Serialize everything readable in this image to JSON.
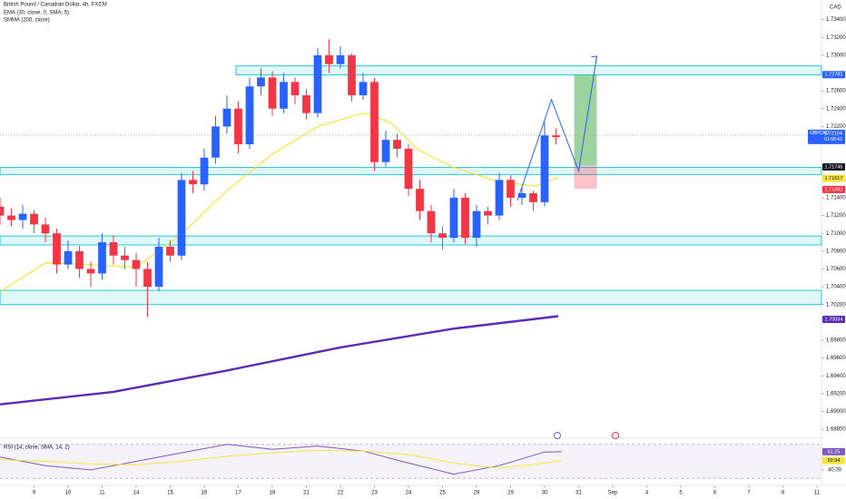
{
  "chart_data": {
    "type": "candlestick",
    "title": "British Pound / Canadian Dollar, 4h, FXCM",
    "indicators": [
      "EMA (30, close, 0, SMA, 5)",
      "SMMA (200, close)"
    ],
    "currency": "CAD",
    "up_color": "#2962ff",
    "down_color": "#f23645",
    "xlim": [
      0,
      72.4
    ],
    "ylim": [
      1.6871,
      1.7362
    ],
    "yticks": [
      {
        "value": 1.734,
        "label": "1.73400"
      },
      {
        "value": 1.732,
        "label": "1.73200"
      },
      {
        "value": 1.73,
        "label": "1.73000"
      },
      {
        "value": 1.726,
        "label": "1.72600"
      },
      {
        "value": 1.724,
        "label": "1.72400"
      },
      {
        "value": 1.722,
        "label": "1.72200"
      },
      {
        "value": 1.714,
        "label": "1.71400"
      },
      {
        "value": 1.712,
        "label": "1.71200"
      },
      {
        "value": 1.71,
        "label": "1.71000"
      },
      {
        "value": 1.708,
        "label": "1.70800"
      },
      {
        "value": 1.706,
        "label": "1.70600"
      },
      {
        "value": 1.704,
        "label": "1.70400"
      },
      {
        "value": 1.702,
        "label": "1.70200"
      },
      {
        "value": 1.698,
        "label": "1.69800"
      },
      {
        "value": 1.696,
        "label": "1.69600"
      },
      {
        "value": 1.694,
        "label": "1.69400"
      },
      {
        "value": 1.692,
        "label": "1.69200"
      },
      {
        "value": 1.69,
        "label": "1.69000"
      },
      {
        "value": 1.688,
        "label": "1.68800"
      }
    ],
    "xticks": [
      {
        "value": 3,
        "label": "9"
      },
      {
        "value": 6,
        "label": "10"
      },
      {
        "value": 9,
        "label": "11"
      },
      {
        "value": 12,
        "label": "14"
      },
      {
        "value": 15,
        "label": "15"
      },
      {
        "value": 18,
        "label": "16"
      },
      {
        "value": 21,
        "label": "17"
      },
      {
        "value": 24,
        "label": "18"
      },
      {
        "value": 27,
        "label": "21"
      },
      {
        "value": 30,
        "label": "22"
      },
      {
        "value": 33,
        "label": "23"
      },
      {
        "value": 36,
        "label": "24"
      },
      {
        "value": 39,
        "label": "25"
      },
      {
        "value": 42,
        "label": "28"
      },
      {
        "value": 45,
        "label": "29"
      },
      {
        "value": 48,
        "label": "30"
      },
      {
        "value": 51,
        "label": "31"
      },
      {
        "value": 54,
        "label": "Sep"
      },
      {
        "value": 57,
        "label": "4"
      },
      {
        "value": 60,
        "label": "5"
      },
      {
        "value": 63,
        "label": "6"
      },
      {
        "value": 66,
        "label": "7"
      },
      {
        "value": 69,
        "label": "8"
      },
      {
        "value": 72,
        "label": "11"
      }
    ],
    "x": [
      0,
      1,
      2,
      3,
      4,
      5,
      6,
      7,
      8,
      9,
      10,
      11,
      12,
      13,
      14,
      15,
      16,
      17,
      18,
      19,
      20,
      21,
      22,
      23,
      24,
      25,
      26,
      27,
      28,
      29,
      30,
      31,
      32,
      33,
      34,
      35,
      36,
      37,
      38,
      39,
      40,
      41,
      42,
      43,
      44,
      45,
      46,
      47,
      48,
      49
    ],
    "open": [
      1.713,
      1.712,
      1.7115,
      1.7122,
      1.711,
      1.71,
      1.7065,
      1.708,
      1.706,
      1.7055,
      1.709,
      1.7075,
      1.707,
      1.706,
      1.704,
      1.7085,
      1.7075,
      1.716,
      1.7155,
      1.7185,
      1.722,
      1.724,
      1.72,
      1.7265,
      1.7275,
      1.724,
      1.727,
      1.7255,
      1.7235,
      1.73,
      1.729,
      1.73,
      1.7255,
      1.727,
      1.718,
      1.7205,
      1.7195,
      1.715,
      1.7125,
      1.71,
      1.7095,
      1.714,
      1.7095,
      1.7125,
      1.712,
      1.716,
      1.714,
      1.7145,
      1.7135,
      1.721
    ],
    "high": [
      1.714,
      1.7128,
      1.7132,
      1.7126,
      1.7118,
      1.7105,
      1.7092,
      1.7086,
      1.7068,
      1.71,
      1.7098,
      1.7085,
      1.7078,
      1.7068,
      1.7095,
      1.7092,
      1.7168,
      1.717,
      1.7195,
      1.7232,
      1.7255,
      1.7248,
      1.7275,
      1.7285,
      1.7282,
      1.728,
      1.7275,
      1.7262,
      1.7308,
      1.7318,
      1.731,
      1.7302,
      1.728,
      1.7275,
      1.7215,
      1.7212,
      1.72,
      1.716,
      1.7132,
      1.7108,
      1.715,
      1.7145,
      1.7132,
      1.713,
      1.7168,
      1.7165,
      1.7152,
      1.7148,
      1.7225,
      1.7218
    ],
    "low": [
      1.711,
      1.7108,
      1.7105,
      1.71,
      1.709,
      1.7055,
      1.706,
      1.705,
      1.704,
      1.7048,
      1.7065,
      1.706,
      1.704,
      1.7006,
      1.7035,
      1.7068,
      1.707,
      1.7145,
      1.7148,
      1.7178,
      1.7212,
      1.719,
      1.7195,
      1.7255,
      1.7232,
      1.7235,
      1.7245,
      1.7228,
      1.723,
      1.728,
      1.7285,
      1.7248,
      1.725,
      1.717,
      1.7175,
      1.7185,
      1.7142,
      1.7115,
      1.709,
      1.7082,
      1.709,
      1.7088,
      1.7085,
      1.711,
      1.7115,
      1.713,
      1.7132,
      1.7125,
      1.713,
      1.72
    ],
    "close": [
      1.712,
      1.7115,
      1.7122,
      1.711,
      1.71,
      1.7065,
      1.708,
      1.706,
      1.7055,
      1.709,
      1.7075,
      1.707,
      1.706,
      1.704,
      1.7085,
      1.7075,
      1.716,
      1.7155,
      1.7185,
      1.722,
      1.724,
      1.72,
      1.7265,
      1.7275,
      1.724,
      1.727,
      1.7255,
      1.7235,
      1.73,
      1.729,
      1.73,
      1.7255,
      1.727,
      1.718,
      1.7205,
      1.7195,
      1.715,
      1.7125,
      1.71,
      1.7095,
      1.714,
      1.7095,
      1.7125,
      1.712,
      1.716,
      1.714,
      1.7145,
      1.7135,
      1.721,
      1.7208
    ],
    "lines": [
      {
        "color": "#f7e33b",
        "x": [
          0,
          4,
          8,
          12,
          16,
          20,
          24,
          28,
          32,
          34.4,
          36.8,
          40,
          44,
          47.2,
          49.2
        ],
        "values": [
          1.7034,
          1.7067,
          1.7065,
          1.7062,
          1.7099,
          1.7148,
          1.7189,
          1.722,
          1.7235,
          1.7225,
          1.7194,
          1.7174,
          1.7158,
          1.7153,
          1.7163
        ]
      },
      {
        "color": "#5b2bb3",
        "x": [
          0,
          10,
          20,
          30,
          40,
          49.2
        ],
        "values": [
          1.6908,
          1.6922,
          1.6946,
          1.6972,
          1.6993,
          1.7007
        ]
      }
    ],
    "zones": [
      {
        "from": 20.8,
        "low": 1.7278,
        "high": 1.7288
      },
      {
        "from": 0,
        "low": 1.7166,
        "high": 1.7174
      },
      {
        "from": 0,
        "low": 1.7087,
        "high": 1.7097
      },
      {
        "from": 0,
        "low": 1.702,
        "high": 1.7036
      }
    ],
    "position": {
      "from": 50.6,
      "to": 52.6,
      "target": 1.7278,
      "entry": 1.7176,
      "stop": 1.715
    },
    "projection": {
      "x": [
        45.6,
        48.6,
        51,
        52.6
      ],
      "values": [
        1.7137,
        1.725,
        1.717,
        1.7299
      ]
    },
    "current_price": {
      "symbol": "GBPCAD",
      "value": 1.72104,
      "countdown": "01:58:43"
    },
    "price_tags": [
      {
        "value": 1.72782,
        "color": "#2962ff"
      },
      {
        "value": 1.71746,
        "color": "#131722"
      },
      {
        "value": 1.71617,
        "color": "#f7e33b"
      },
      {
        "value": 1.71492,
        "color": "#f23645"
      },
      {
        "value": 1.70034,
        "color": "#5b2bb3"
      }
    ],
    "rsi": {
      "label": "RSI (14, close, SMA, 14, 2)",
      "ylim": [
        25,
        75
      ],
      "yticks": [
        {
          "value": 40,
          "label": "40.00"
        }
      ],
      "band": [
        30,
        70
      ],
      "x": [
        0,
        4,
        8,
        12,
        16,
        20,
        24,
        28,
        32,
        36,
        40,
        44,
        48,
        49.5
      ],
      "values": [
        55,
        45,
        40,
        50,
        60,
        70,
        64,
        68,
        62,
        48,
        35,
        45,
        61,
        61.25
      ],
      "ma": [
        52,
        50,
        47,
        46,
        50,
        56,
        60,
        63,
        62,
        58,
        48,
        42,
        48,
        50.94
      ],
      "tags": [
        {
          "value": 61.25,
          "color": "#7e57c2"
        },
        {
          "value": 50.94,
          "color": "#f7e33b"
        }
      ]
    }
  }
}
